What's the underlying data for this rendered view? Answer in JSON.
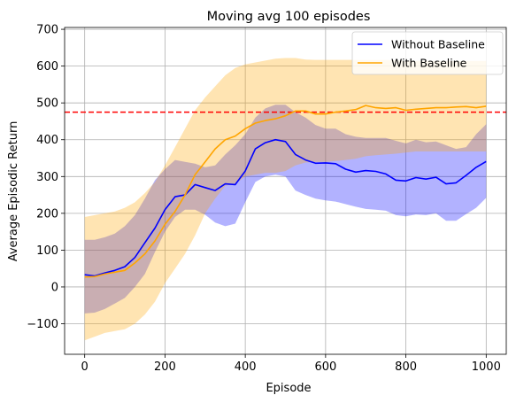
{
  "chart_data": {
    "type": "line",
    "title": "Moving avg 100 episodes",
    "xlabel": "Episode",
    "ylabel": "Average Episodic Return",
    "xlim": [
      -50,
      1050
    ],
    "ylim": [
      -183,
      705
    ],
    "xticks": [
      0,
      200,
      400,
      600,
      800,
      1000
    ],
    "xtick_labels": [
      "0",
      "200",
      "400",
      "600",
      "800",
      "1000"
    ],
    "yticks": [
      -100,
      0,
      100,
      200,
      300,
      400,
      500,
      600,
      700
    ],
    "ytick_labels": [
      "−100",
      "0",
      "100",
      "200",
      "300",
      "400",
      "500",
      "600",
      "700"
    ],
    "grid": true,
    "legend_position": "top-right",
    "reference_line": {
      "y": 475,
      "color": "#ff0000",
      "style": "dashed"
    },
    "series": [
      {
        "name": "Without Baseline",
        "color": "#0000ff",
        "band_color": "#0000ff",
        "band_opacity": 0.3,
        "x": [
          0,
          25,
          50,
          75,
          100,
          125,
          150,
          175,
          200,
          225,
          250,
          275,
          300,
          325,
          350,
          375,
          400,
          425,
          450,
          475,
          500,
          525,
          550,
          575,
          600,
          625,
          650,
          675,
          700,
          725,
          750,
          775,
          800,
          825,
          850,
          875,
          900,
          925,
          950,
          975,
          1000
        ],
        "y": [
          33,
          30,
          38,
          45,
          55,
          80,
          120,
          160,
          210,
          245,
          250,
          278,
          270,
          262,
          280,
          278,
          315,
          375,
          392,
          400,
          395,
          360,
          345,
          336,
          337,
          335,
          320,
          312,
          316,
          314,
          307,
          290,
          288,
          297,
          293,
          298,
          280,
          283,
          303,
          325,
          341
        ],
        "upper": [
          128,
          128,
          135,
          145,
          165,
          195,
          240,
          290,
          320,
          345,
          340,
          335,
          325,
          330,
          360,
          385,
          415,
          460,
          485,
          495,
          495,
          475,
          460,
          440,
          430,
          430,
          415,
          408,
          405,
          405,
          405,
          397,
          390,
          400,
          393,
          395,
          385,
          375,
          380,
          415,
          442
        ],
        "lower": [
          -72,
          -70,
          -60,
          -45,
          -30,
          0,
          35,
          95,
          150,
          190,
          210,
          210,
          196,
          175,
          165,
          172,
          230,
          285,
          300,
          305,
          300,
          262,
          250,
          240,
          235,
          232,
          225,
          218,
          212,
          210,
          207,
          195,
          192,
          197,
          195,
          200,
          180,
          180,
          198,
          215,
          242
        ]
      },
      {
        "name": "With Baseline",
        "color": "#ffa500",
        "band_color": "#ffa500",
        "band_opacity": 0.3,
        "x": [
          0,
          25,
          50,
          75,
          100,
          125,
          150,
          175,
          200,
          225,
          250,
          275,
          300,
          325,
          350,
          375,
          400,
          425,
          450,
          475,
          500,
          525,
          550,
          575,
          600,
          625,
          650,
          675,
          700,
          725,
          750,
          775,
          800,
          825,
          850,
          875,
          900,
          925,
          950,
          975,
          1000
        ],
        "y": [
          27,
          28,
          35,
          40,
          45,
          65,
          90,
          125,
          170,
          205,
          250,
          305,
          340,
          375,
          400,
          410,
          430,
          445,
          452,
          457,
          465,
          478,
          478,
          470,
          470,
          475,
          478,
          482,
          493,
          487,
          485,
          487,
          480,
          483,
          485,
          487,
          487,
          489,
          490,
          487,
          491
        ],
        "upper": [
          190,
          195,
          200,
          205,
          215,
          230,
          255,
          285,
          330,
          380,
          430,
          480,
          515,
          545,
          575,
          595,
          605,
          610,
          615,
          620,
          622,
          622,
          618,
          617,
          617,
          617,
          617,
          617,
          617,
          617,
          617,
          616,
          614,
          614,
          614,
          614,
          614,
          614,
          614,
          614,
          614
        ],
        "lower": [
          -145,
          -135,
          -125,
          -120,
          -115,
          -100,
          -75,
          -40,
          10,
          50,
          90,
          140,
          200,
          240,
          275,
          280,
          300,
          305,
          310,
          310,
          315,
          330,
          338,
          340,
          340,
          342,
          345,
          348,
          355,
          358,
          360,
          362,
          365,
          368,
          368,
          368,
          368,
          368,
          368,
          368,
          368
        ]
      }
    ]
  }
}
